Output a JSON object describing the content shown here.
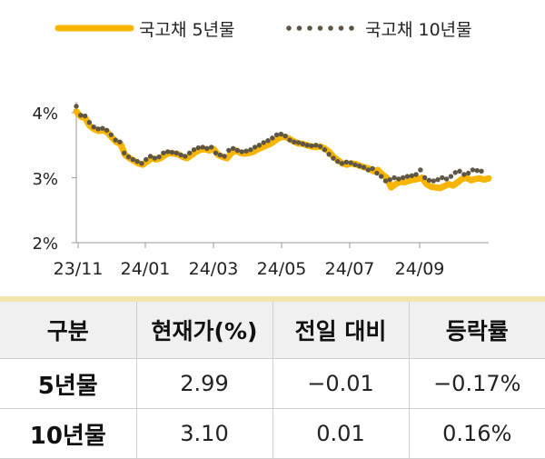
{
  "chart_data": {
    "type": "line",
    "x_tick_labels": [
      "23/11",
      "24/01",
      "24/03",
      "24/05",
      "24/07",
      "24/09"
    ],
    "y_tick_labels": [
      "4%",
      "3%",
      "2%"
    ],
    "ylim": [
      2,
      4.1
    ],
    "ylabel": "",
    "xlabel": "",
    "title": "",
    "legend_position": "top",
    "colors": {
      "series_5y": "#f7b500",
      "series_10y": "#5e5546"
    },
    "series": [
      {
        "name": "국고채 5년물",
        "style": "thick-line",
        "values": [
          4.02,
          3.94,
          3.92,
          3.8,
          3.75,
          3.72,
          3.73,
          3.7,
          3.62,
          3.55,
          3.52,
          3.35,
          3.3,
          3.26,
          3.22,
          3.2,
          3.25,
          3.3,
          3.28,
          3.3,
          3.35,
          3.38,
          3.37,
          3.36,
          3.32,
          3.3,
          3.35,
          3.4,
          3.43,
          3.44,
          3.42,
          3.44,
          3.35,
          3.32,
          3.3,
          3.38,
          3.42,
          3.38,
          3.37,
          3.38,
          3.4,
          3.44,
          3.47,
          3.5,
          3.53,
          3.58,
          3.62,
          3.63,
          3.6,
          3.56,
          3.53,
          3.52,
          3.5,
          3.48,
          3.47,
          3.48,
          3.45,
          3.4,
          3.32,
          3.27,
          3.22,
          3.2,
          3.22,
          3.21,
          3.18,
          3.16,
          3.14,
          3.1,
          3.12,
          3.05,
          3.0,
          2.85,
          2.9,
          2.94,
          2.93,
          2.95,
          2.97,
          2.98,
          3.0,
          2.9,
          2.86,
          2.85,
          2.84,
          2.87,
          2.9,
          2.88,
          2.93,
          2.98,
          3.0,
          2.96,
          2.98,
          2.99,
          2.97,
          2.99
        ]
      },
      {
        "name": "국고채 10년물",
        "style": "dots",
        "values": [
          4.1,
          3.96,
          3.95,
          3.85,
          3.78,
          3.75,
          3.76,
          3.73,
          3.66,
          3.58,
          3.55,
          3.38,
          3.32,
          3.28,
          3.25,
          3.22,
          3.28,
          3.33,
          3.3,
          3.32,
          3.38,
          3.4,
          3.39,
          3.38,
          3.35,
          3.33,
          3.38,
          3.43,
          3.46,
          3.47,
          3.45,
          3.47,
          3.38,
          3.35,
          3.33,
          3.42,
          3.45,
          3.42,
          3.4,
          3.41,
          3.43,
          3.47,
          3.5,
          3.54,
          3.57,
          3.61,
          3.66,
          3.67,
          3.64,
          3.58,
          3.55,
          3.54,
          3.52,
          3.5,
          3.49,
          3.5,
          3.48,
          3.43,
          3.36,
          3.3,
          3.25,
          3.22,
          3.24,
          3.23,
          3.2,
          3.18,
          3.16,
          3.12,
          3.14,
          3.07,
          3.02,
          2.95,
          2.97,
          3.0,
          2.98,
          3.0,
          3.02,
          3.03,
          3.05,
          3.12,
          3.0,
          2.96,
          2.95,
          2.97,
          3.0,
          2.98,
          3.02,
          3.08,
          3.1,
          3.05,
          3.07,
          3.12,
          3.11,
          3.1
        ]
      }
    ]
  },
  "table": {
    "headers": [
      "구분",
      "현재가(%)",
      "전일 대비",
      "등락률"
    ],
    "rows": [
      [
        "5년물",
        "2.99",
        "−0.01",
        "−0.17%"
      ],
      [
        "10년물",
        "3.10",
        "0.01",
        "0.16%"
      ]
    ]
  }
}
